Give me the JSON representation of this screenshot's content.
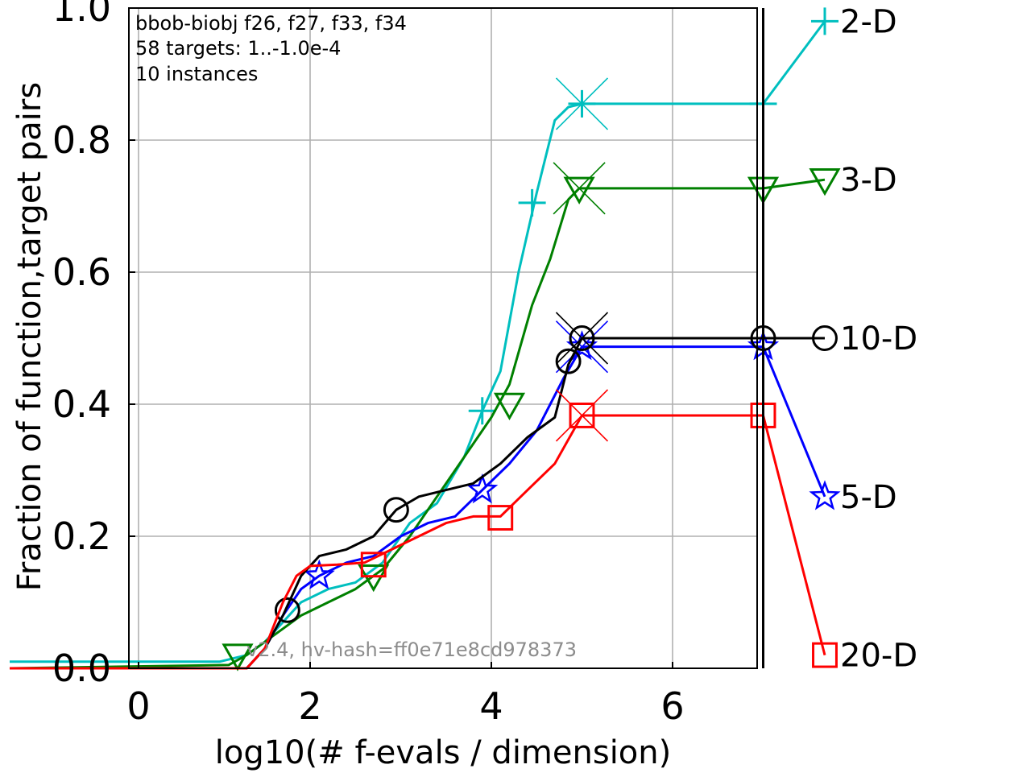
{
  "chart_data": {
    "type": "line",
    "info_lines": [
      "bbob-biobj f26, f27, f33, f34",
      "58 targets: 1..-1.0e-4",
      "10 instances"
    ],
    "watermark": "v2.4, hv-hash=ff0e71e8cd978373",
    "xlabel": "log10(# f-evals / dimension)",
    "ylabel": "Fraction of function,target pairs",
    "xlim": [
      -2.0,
      7.0
    ],
    "ylim": [
      0.0,
      1.0
    ],
    "xticks": [
      {
        "v": 0,
        "label": "0"
      },
      {
        "v": 2,
        "label": "2"
      },
      {
        "v": 4,
        "label": "4"
      },
      {
        "v": 6,
        "label": "6"
      }
    ],
    "yticks": [
      {
        "v": 0.0,
        "label": "0.0"
      },
      {
        "v": 0.2,
        "label": "0.2"
      },
      {
        "v": 0.4,
        "label": "0.4"
      },
      {
        "v": 0.6,
        "label": "0.6"
      },
      {
        "v": 0.8,
        "label": "0.8"
      },
      {
        "v": 1.0,
        "label": "1.0"
      }
    ],
    "grid": true,
    "budget_line_x": 7.0,
    "series": [
      {
        "name": "2-D",
        "color": "#00bfbf",
        "marker": "plus",
        "x": [
          -2.0,
          1.0,
          1.3,
          1.5,
          1.7,
          1.9,
          2.2,
          2.5,
          2.8,
          3.1,
          3.4,
          3.7,
          3.9,
          4.1,
          4.3,
          4.5,
          4.7,
          4.85,
          5.0
        ],
        "y": [
          0.01,
          0.01,
          0.02,
          0.04,
          0.07,
          0.1,
          0.12,
          0.13,
          0.16,
          0.22,
          0.25,
          0.32,
          0.39,
          0.45,
          0.6,
          0.72,
          0.83,
          0.85,
          0.855
        ],
        "markers_x": [
          3.9,
          4.45,
          5.0
        ],
        "markers_y": [
          0.39,
          0.705,
          0.855
        ],
        "end_x": 5.0,
        "end_y": 0.855,
        "plateau_x": 7.0,
        "plateau_y": 0.855,
        "legend_y": 0.98
      },
      {
        "name": "3-D",
        "color": "#008000",
        "marker": "tri-down",
        "x": [
          -2.0,
          1.1,
          1.3,
          1.5,
          1.7,
          1.9,
          2.2,
          2.5,
          2.8,
          3.1,
          3.4,
          3.7,
          4.0,
          4.2,
          4.45,
          4.65,
          4.85,
          4.97
        ],
        "y": [
          0.0,
          0.005,
          0.02,
          0.04,
          0.06,
          0.08,
          0.1,
          0.12,
          0.15,
          0.2,
          0.26,
          0.32,
          0.38,
          0.43,
          0.55,
          0.62,
          0.71,
          0.727
        ],
        "markers_x": [
          1.2,
          2.7,
          4.2,
          4.97
        ],
        "markers_y": [
          0.02,
          0.14,
          0.4,
          0.727
        ],
        "end_x": 4.97,
        "end_y": 0.727,
        "plateau_x": 7.0,
        "plateau_y": 0.727,
        "legend_y": 0.74
      },
      {
        "name": "5-D",
        "color": "#0000ff",
        "marker": "star",
        "x": [
          -2.0,
          1.3,
          1.5,
          1.7,
          1.9,
          2.1,
          2.4,
          2.7,
          3.0,
          3.3,
          3.6,
          3.9,
          4.2,
          4.5,
          4.8,
          5.0
        ],
        "y": [
          0.0,
          0.0,
          0.03,
          0.08,
          0.12,
          0.14,
          0.16,
          0.17,
          0.2,
          0.22,
          0.23,
          0.27,
          0.31,
          0.36,
          0.44,
          0.487
        ],
        "markers_x": [
          2.1,
          3.9,
          5.0
        ],
        "markers_y": [
          0.14,
          0.27,
          0.487
        ],
        "end_x": 5.0,
        "end_y": 0.487,
        "plateau_x": 7.0,
        "plateau_y": 0.487,
        "legend_y": 0.26
      },
      {
        "name": "10-D",
        "color": "#000000",
        "marker": "circle",
        "x": [
          -2.0,
          1.3,
          1.5,
          1.7,
          1.9,
          2.1,
          2.4,
          2.7,
          2.95,
          3.2,
          3.5,
          3.8,
          4.1,
          4.4,
          4.7,
          4.85,
          5.0
        ],
        "y": [
          0.0,
          0.0,
          0.03,
          0.08,
          0.14,
          0.17,
          0.18,
          0.2,
          0.24,
          0.26,
          0.27,
          0.28,
          0.31,
          0.35,
          0.38,
          0.46,
          0.5
        ],
        "markers_x": [
          1.75,
          2.95,
          4.85,
          5.0
        ],
        "markers_y": [
          0.088,
          0.24,
          0.465,
          0.5
        ],
        "end_x": 5.0,
        "end_y": 0.5,
        "plateau_x": 7.0,
        "plateau_y": 0.5,
        "legend_y": 0.5
      },
      {
        "name": "20-D",
        "color": "#ff0000",
        "marker": "square",
        "x": [
          -2.0,
          1.3,
          1.5,
          1.7,
          1.85,
          2.0,
          2.3,
          2.6,
          2.9,
          3.2,
          3.5,
          3.8,
          4.1,
          4.4,
          4.7,
          5.0
        ],
        "y": [
          0.0,
          0.0,
          0.03,
          0.1,
          0.14,
          0.155,
          0.157,
          0.16,
          0.18,
          0.2,
          0.22,
          0.23,
          0.23,
          0.27,
          0.31,
          0.383
        ],
        "markers_x": [
          2.7,
          4.1,
          5.0
        ],
        "markers_y": [
          0.157,
          0.228,
          0.383
        ],
        "end_x": 5.0,
        "end_y": 0.383,
        "plateau_x": 7.0,
        "plateau_y": 0.383,
        "legend_y": 0.02
      }
    ]
  }
}
